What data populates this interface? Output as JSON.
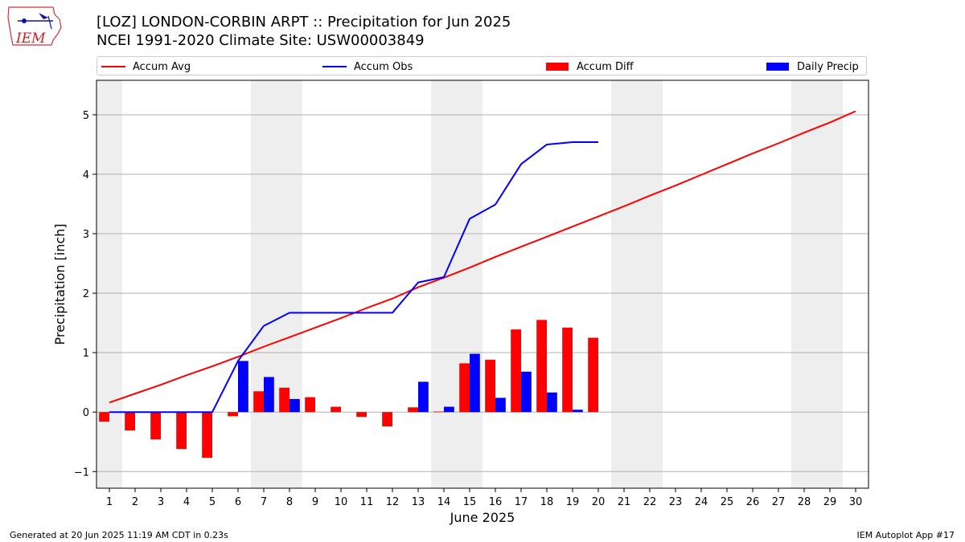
{
  "header": {
    "title_line1": "[LOZ] LONDON-CORBIN ARPT :: Precipitation for Jun 2025",
    "title_line2": "NCEI 1991-2020 Climate Site: USW00003849",
    "logo_text": "IEM"
  },
  "footer": {
    "left": "Generated at 20 Jun 2025 11:19 AM CDT in 0.23s",
    "right": "IEM Autoplot App #17"
  },
  "colors": {
    "avg": "#ff0000",
    "obs": "#0000ff",
    "diff": "#ff0000",
    "daily": "#0000ff",
    "weekend_shade": "#eeeeee",
    "grid": "#b0b0b0"
  },
  "chart_data": {
    "type": "bar",
    "xlabel": "June 2025",
    "ylabel": "Precipitation [inch]",
    "xlim": [
      0.5,
      30.5
    ],
    "ylim": [
      -1.28,
      5.58
    ],
    "xticks": [
      1,
      2,
      3,
      4,
      5,
      6,
      7,
      8,
      9,
      10,
      11,
      12,
      13,
      14,
      15,
      16,
      17,
      18,
      19,
      20,
      21,
      22,
      23,
      24,
      25,
      26,
      27,
      28,
      29,
      30
    ],
    "yticks": [
      -1,
      0,
      1,
      2,
      3,
      4,
      5
    ],
    "grid": "y",
    "legend_position": "top",
    "weekend_days": [
      1,
      7,
      8,
      14,
      15,
      21,
      22,
      28,
      29
    ],
    "series": [
      {
        "name": "Accum Avg",
        "kind": "line",
        "x": [
          1,
          2,
          3,
          4,
          5,
          6,
          7,
          8,
          9,
          10,
          11,
          12,
          13,
          14,
          15,
          16,
          17,
          18,
          19,
          20,
          21,
          22,
          23,
          24,
          25,
          26,
          27,
          28,
          29,
          30
        ],
        "values": [
          0.16,
          0.31,
          0.46,
          0.62,
          0.77,
          0.93,
          1.1,
          1.26,
          1.42,
          1.58,
          1.75,
          1.91,
          2.1,
          2.26,
          2.43,
          2.61,
          2.78,
          2.95,
          3.12,
          3.29,
          3.46,
          3.64,
          3.81,
          3.99,
          4.17,
          4.35,
          4.52,
          4.7,
          4.87,
          5.06
        ]
      },
      {
        "name": "Accum Obs",
        "kind": "line",
        "x": [
          1,
          2,
          3,
          4,
          5,
          6,
          7,
          8,
          9,
          10,
          11,
          12,
          13,
          14,
          15,
          16,
          17,
          18,
          19,
          20
        ],
        "values": [
          0.0,
          0.0,
          0.0,
          0.0,
          0.0,
          0.86,
          1.45,
          1.67,
          1.67,
          1.67,
          1.67,
          1.67,
          2.18,
          2.27,
          3.25,
          3.49,
          4.17,
          4.5,
          4.54,
          4.54
        ]
      },
      {
        "name": "Accum Diff",
        "kind": "bar",
        "x": [
          1,
          2,
          3,
          4,
          5,
          6,
          7,
          8,
          9,
          10,
          11,
          12,
          13,
          14,
          15,
          16,
          17,
          18,
          19,
          20
        ],
        "values": [
          -0.16,
          -0.31,
          -0.46,
          -0.62,
          -0.77,
          -0.07,
          0.35,
          0.41,
          0.25,
          0.09,
          -0.08,
          -0.24,
          0.08,
          0.01,
          0.82,
          0.88,
          1.39,
          1.55,
          1.42,
          1.25
        ]
      },
      {
        "name": "Daily Precip",
        "kind": "bar",
        "x": [
          1,
          2,
          3,
          4,
          5,
          6,
          7,
          8,
          9,
          10,
          11,
          12,
          13,
          14,
          15,
          16,
          17,
          18,
          19,
          20
        ],
        "values": [
          0,
          0,
          0,
          0,
          0,
          0.86,
          0.59,
          0.22,
          0,
          0,
          0,
          0,
          0.51,
          0.09,
          0.98,
          0.24,
          0.68,
          0.33,
          0.04,
          0
        ]
      }
    ]
  }
}
